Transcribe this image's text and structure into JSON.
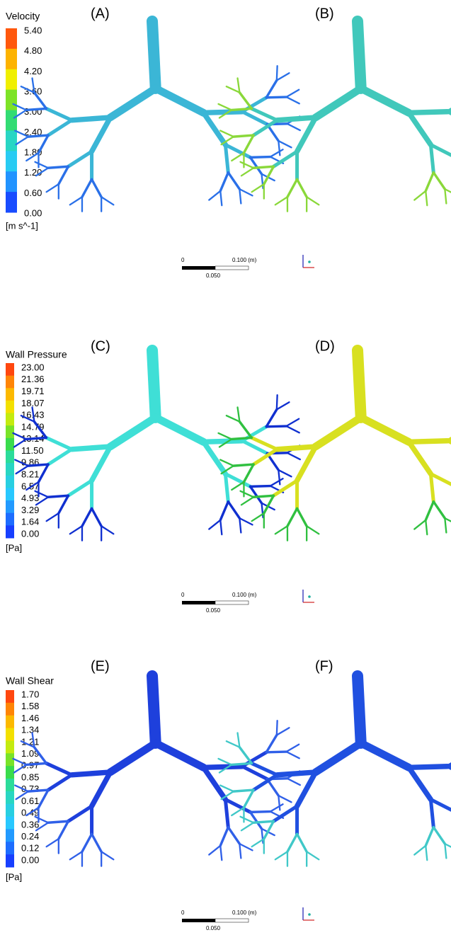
{
  "figure": {
    "rows": [
      {
        "legend": {
          "title": "Velocity",
          "ticks": [
            "5.40",
            "4.80",
            "4.20",
            "3.60",
            "3.00",
            "2.40",
            "1.80",
            "1.20",
            "0.60",
            "0.00"
          ],
          "unit": "[m s^-1]"
        },
        "panels": [
          "(A)",
          "(B)"
        ],
        "scale_bar": {
          "start": "0",
          "end": "0.100 (m)",
          "mid": "0.050"
        }
      },
      {
        "legend": {
          "title": "Wall Pressure",
          "ticks": [
            "23.00",
            "21.36",
            "19.71",
            "18.07",
            "16.43",
            "14.79",
            "13.14",
            "11.50",
            "9.86",
            "8.21",
            "6.57",
            "4.93",
            "3.29",
            "1.64",
            "0.00"
          ],
          "unit": "[Pa]"
        },
        "panels": [
          "(C)",
          "(D)"
        ],
        "scale_bar": {
          "start": "0",
          "end": "0.100 (m)",
          "mid": "0.050"
        }
      },
      {
        "legend": {
          "title": "Wall Shear",
          "ticks": [
            "1.70",
            "1.58",
            "1.46",
            "1.34",
            "1.21",
            "1.09",
            "0.97",
            "0.85",
            "0.73",
            "0.61",
            "0.49",
            "0.36",
            "0.24",
            "0.12",
            "0.00"
          ],
          "unit": "[Pa]"
        },
        "panels": [
          "(E)",
          "(F)"
        ],
        "scale_bar": {
          "start": "0",
          "end": "0.100 (m)",
          "mid": "0.050"
        }
      }
    ]
  }
}
